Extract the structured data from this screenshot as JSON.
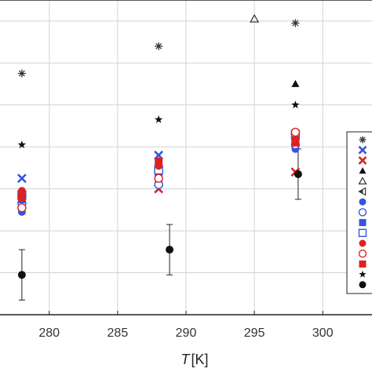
{
  "chart_data": {
    "type": "scatter",
    "xlabel": {
      "symbol": "T",
      "unit": "[K]"
    },
    "x_ticks": [
      280,
      285,
      290,
      295,
      300
    ],
    "xlim": [
      276.4,
      303.6
    ],
    "grid": true,
    "legend_position": "right, partially cropped",
    "series": [
      {
        "marker": "asterisk",
        "color": "#333333",
        "points": [
          {
            "x": 278,
            "y": 5.75
          },
          {
            "x": 288,
            "y": 6.4
          },
          {
            "x": 298,
            "y": 6.95
          }
        ]
      },
      {
        "marker": "x",
        "color": "#3355dd",
        "points": [
          {
            "x": 278,
            "y": 3.25
          },
          {
            "x": 288,
            "y": 3.8
          },
          {
            "x": 298,
            "y": 4.25
          }
        ]
      },
      {
        "marker": "x",
        "color": "#dd2222",
        "points": [
          {
            "x": 278,
            "y": 2.6
          },
          {
            "x": 288,
            "y": 3.0
          },
          {
            "x": 298,
            "y": 3.4
          }
        ]
      },
      {
        "marker": "triangle-filled",
        "color": "#111111",
        "points": [
          {
            "x": 298,
            "y": 5.5
          }
        ]
      },
      {
        "marker": "triangle-open",
        "color": "#333333",
        "points": [
          {
            "x": 295,
            "y": 7.05
          }
        ]
      },
      {
        "marker": "triangle-left-open",
        "color": "#333333",
        "points": []
      },
      {
        "marker": "circle-filled",
        "color": "#3355dd",
        "points": [
          {
            "x": 278,
            "y": 2.45
          },
          {
            "x": 288,
            "y": 3.2
          },
          {
            "x": 298,
            "y": 3.95
          }
        ]
      },
      {
        "marker": "circle-open",
        "color": "#3355dd",
        "points": [
          {
            "x": 278,
            "y": 2.65
          },
          {
            "x": 288,
            "y": 3.1
          },
          {
            "x": 298,
            "y": 4.05
          }
        ]
      },
      {
        "marker": "square-filled",
        "color": "#3355dd",
        "points": [
          {
            "x": 278,
            "y": 2.75
          },
          {
            "x": 288,
            "y": 3.35
          },
          {
            "x": 298,
            "y": 4.15
          }
        ]
      },
      {
        "marker": "square-open",
        "color": "#3355dd",
        "points": [
          {
            "x": 278,
            "y": 2.85
          },
          {
            "x": 288,
            "y": 3.45
          },
          {
            "x": 298,
            "y": 4.3
          }
        ]
      },
      {
        "marker": "circle-filled",
        "color": "#dd2222",
        "points": [
          {
            "x": 278,
            "y": 2.95
          },
          {
            "x": 288,
            "y": 3.55
          },
          {
            "x": 298,
            "y": 4.2
          }
        ]
      },
      {
        "marker": "circle-open",
        "color": "#dd2222",
        "points": [
          {
            "x": 278,
            "y": 2.55
          },
          {
            "x": 288,
            "y": 3.25
          },
          {
            "x": 298,
            "y": 4.35
          }
        ]
      },
      {
        "marker": "square-filled",
        "color": "#dd2222",
        "points": [
          {
            "x": 278,
            "y": 2.8
          },
          {
            "x": 288,
            "y": 3.65
          },
          {
            "x": 298,
            "y": 4.1
          }
        ]
      },
      {
        "marker": "star",
        "color": "#111111",
        "points": [
          {
            "x": 278,
            "y": 4.05
          },
          {
            "x": 288,
            "y": 4.65
          },
          {
            "x": 298,
            "y": 5.0
          }
        ]
      },
      {
        "marker": "circle-filled",
        "color": "#111111",
        "points": [
          {
            "x": 278,
            "y": 0.95,
            "err": 0.6
          },
          {
            "x": 288.8,
            "y": 1.55,
            "err": 0.6
          },
          {
            "x": 298.2,
            "y": 3.35,
            "err": 0.6
          }
        ]
      }
    ],
    "ylim": [
      0,
      7.5
    ]
  }
}
